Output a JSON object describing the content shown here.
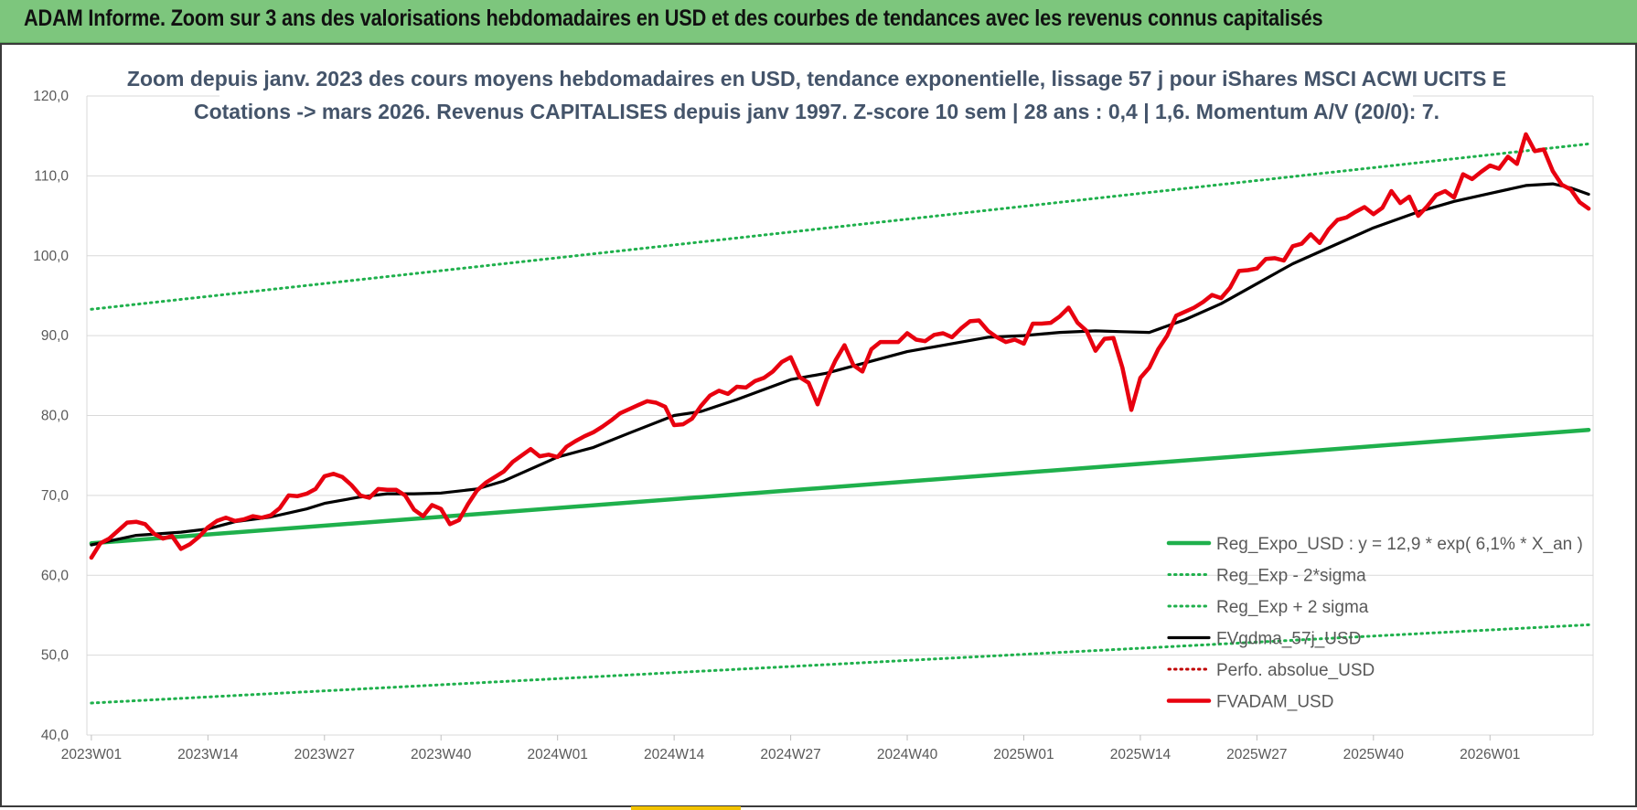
{
  "header": {
    "title": "ADAM Informe. Zoom sur 3 ans des valorisations hebdomadaires en USD et des courbes de tendances avec les revenus connus capitalisés"
  },
  "chart_data": {
    "type": "line",
    "title_line1": "Zoom depuis janv. 2023 des cours moyens hebdomadaires en USD, tendance exponentielle, lissage 57 j pour iShares MSCI ACWI UCITS E",
    "title_line2": "Cotations -> mars 2026. Revenus CAPITALISES depuis janv 1997.  Z-score 10 sem | 28 ans : 0,4 | 1,6.  Momentum A/V (20/0): 7.",
    "ylim": [
      40,
      120
    ],
    "yticks": [
      "40,0",
      "50,0",
      "60,0",
      "70,0",
      "80,0",
      "90,0",
      "100,0",
      "110,0",
      "120,0"
    ],
    "x_count": 168,
    "xticks": [
      {
        "i": 0,
        "label": "2023W01"
      },
      {
        "i": 13,
        "label": "2023W14"
      },
      {
        "i": 26,
        "label": "2023W27"
      },
      {
        "i": 39,
        "label": "2023W40"
      },
      {
        "i": 52,
        "label": "2024W01"
      },
      {
        "i": 65,
        "label": "2024W14"
      },
      {
        "i": 78,
        "label": "2024W27"
      },
      {
        "i": 91,
        "label": "2024W40"
      },
      {
        "i": 104,
        "label": "2025W01"
      },
      {
        "i": 117,
        "label": "2025W14"
      },
      {
        "i": 130,
        "label": "2025W27"
      },
      {
        "i": 143,
        "label": "2025W40"
      },
      {
        "i": 156,
        "label": "2026W01"
      }
    ],
    "grid": true,
    "legend_position": "bottom-right",
    "series": [
      {
        "name": "Reg_Expo_USD : y = 12,9 * exp( 6,1% *  X_an )",
        "color": "#1fb04c",
        "style": "solid-thick",
        "points": [
          [
            0,
            64.0
          ],
          [
            167,
            78.2
          ]
        ]
      },
      {
        "name": "Reg_Exp - 2*sigma",
        "color": "#1fb04c",
        "style": "dotted",
        "points": [
          [
            0,
            44.0
          ],
          [
            167,
            53.8
          ]
        ]
      },
      {
        "name": "Reg_Exp + 2 sigma",
        "color": "#1fb04c",
        "style": "dotted",
        "points": [
          [
            0,
            93.3
          ],
          [
            167,
            114.0
          ]
        ]
      },
      {
        "name": "FVgdma_57j_USD",
        "color": "#000000",
        "style": "solid",
        "points": [
          [
            0,
            63.8
          ],
          [
            5,
            65.0
          ],
          [
            10,
            65.4
          ],
          [
            13,
            65.8
          ],
          [
            16,
            66.7
          ],
          [
            20,
            67.3
          ],
          [
            24,
            68.3
          ],
          [
            26,
            69.0
          ],
          [
            30,
            69.8
          ],
          [
            33,
            70.2
          ],
          [
            36,
            70.2
          ],
          [
            39,
            70.3
          ],
          [
            43,
            70.8
          ],
          [
            46,
            71.8
          ],
          [
            50,
            73.8
          ],
          [
            52,
            74.8
          ],
          [
            56,
            76.0
          ],
          [
            60,
            77.8
          ],
          [
            65,
            80.0
          ],
          [
            68,
            80.5
          ],
          [
            72,
            82.0
          ],
          [
            78,
            84.5
          ],
          [
            82,
            85.3
          ],
          [
            86,
            86.5
          ],
          [
            91,
            88.0
          ],
          [
            96,
            89.0
          ],
          [
            100,
            89.8
          ],
          [
            104,
            90.0
          ],
          [
            108,
            90.4
          ],
          [
            112,
            90.6
          ],
          [
            115,
            90.5
          ],
          [
            118,
            90.4
          ],
          [
            122,
            92.0
          ],
          [
            126,
            94.0
          ],
          [
            130,
            96.5
          ],
          [
            134,
            99.0
          ],
          [
            138,
            101.0
          ],
          [
            143,
            103.5
          ],
          [
            148,
            105.5
          ],
          [
            152,
            106.8
          ],
          [
            156,
            107.8
          ],
          [
            160,
            108.8
          ],
          [
            163,
            109.0
          ],
          [
            165,
            108.5
          ],
          [
            167,
            107.7
          ]
        ]
      },
      {
        "name": "Perfo. absolue_USD",
        "color": "#c00000",
        "style": "dotted",
        "points": []
      },
      {
        "name": "FVADAM_USD",
        "color": "#e8000f",
        "style": "solid-thick",
        "points": [
          [
            0,
            62.2
          ],
          [
            1,
            64.0
          ],
          [
            2,
            64.6
          ],
          [
            3,
            65.6
          ],
          [
            4,
            66.6
          ],
          [
            5,
            66.7
          ],
          [
            6,
            66.4
          ],
          [
            7,
            65.2
          ],
          [
            8,
            64.6
          ],
          [
            9,
            64.9
          ],
          [
            10,
            63.3
          ],
          [
            11,
            63.9
          ],
          [
            12,
            64.8
          ],
          [
            13,
            66.0
          ],
          [
            14,
            66.8
          ],
          [
            15,
            67.2
          ],
          [
            16,
            66.8
          ],
          [
            17,
            67.0
          ],
          [
            18,
            67.4
          ],
          [
            19,
            67.2
          ],
          [
            20,
            67.5
          ],
          [
            21,
            68.4
          ],
          [
            22,
            70.0
          ],
          [
            23,
            69.9
          ],
          [
            24,
            70.2
          ],
          [
            25,
            70.8
          ],
          [
            26,
            72.4
          ],
          [
            27,
            72.7
          ],
          [
            28,
            72.3
          ],
          [
            29,
            71.3
          ],
          [
            30,
            70.0
          ],
          [
            31,
            69.7
          ],
          [
            32,
            70.8
          ],
          [
            33,
            70.7
          ],
          [
            34,
            70.7
          ],
          [
            35,
            70.0
          ],
          [
            36,
            68.2
          ],
          [
            37,
            67.4
          ],
          [
            38,
            68.8
          ],
          [
            39,
            68.3
          ],
          [
            40,
            66.4
          ],
          [
            41,
            66.9
          ],
          [
            42,
            68.9
          ],
          [
            43,
            70.6
          ],
          [
            44,
            71.6
          ],
          [
            45,
            72.3
          ],
          [
            46,
            73.0
          ],
          [
            47,
            74.2
          ],
          [
            48,
            75.0
          ],
          [
            49,
            75.8
          ],
          [
            50,
            74.9
          ],
          [
            51,
            75.1
          ],
          [
            52,
            74.8
          ],
          [
            53,
            76.1
          ],
          [
            54,
            76.8
          ],
          [
            55,
            77.4
          ],
          [
            56,
            77.9
          ],
          [
            57,
            78.6
          ],
          [
            58,
            79.4
          ],
          [
            59,
            80.3
          ],
          [
            60,
            80.8
          ],
          [
            61,
            81.3
          ],
          [
            62,
            81.8
          ],
          [
            63,
            81.6
          ],
          [
            64,
            81.1
          ],
          [
            65,
            78.8
          ],
          [
            66,
            78.9
          ],
          [
            67,
            79.6
          ],
          [
            68,
            81.2
          ],
          [
            69,
            82.5
          ],
          [
            70,
            83.1
          ],
          [
            71,
            82.7
          ],
          [
            72,
            83.6
          ],
          [
            73,
            83.5
          ],
          [
            74,
            84.3
          ],
          [
            75,
            84.7
          ],
          [
            76,
            85.5
          ],
          [
            77,
            86.7
          ],
          [
            78,
            87.3
          ],
          [
            79,
            84.8
          ],
          [
            80,
            84.1
          ],
          [
            81,
            81.4
          ],
          [
            82,
            84.5
          ],
          [
            83,
            86.9
          ],
          [
            84,
            88.8
          ],
          [
            85,
            86.3
          ],
          [
            86,
            85.5
          ],
          [
            87,
            88.3
          ],
          [
            88,
            89.2
          ],
          [
            89,
            89.2
          ],
          [
            90,
            89.2
          ],
          [
            91,
            90.3
          ],
          [
            92,
            89.5
          ],
          [
            93,
            89.3
          ],
          [
            94,
            90.1
          ],
          [
            95,
            90.3
          ],
          [
            96,
            89.8
          ],
          [
            97,
            90.9
          ],
          [
            98,
            91.8
          ],
          [
            99,
            91.9
          ],
          [
            100,
            90.6
          ],
          [
            101,
            89.8
          ],
          [
            102,
            89.2
          ],
          [
            103,
            89.5
          ],
          [
            104,
            89.0
          ],
          [
            105,
            91.5
          ],
          [
            106,
            91.5
          ],
          [
            107,
            91.6
          ],
          [
            108,
            92.4
          ],
          [
            109,
            93.5
          ],
          [
            110,
            91.6
          ],
          [
            111,
            90.6
          ],
          [
            112,
            88.1
          ],
          [
            113,
            89.6
          ],
          [
            114,
            89.7
          ],
          [
            115,
            86.0
          ],
          [
            116,
            80.7
          ],
          [
            117,
            84.7
          ],
          [
            118,
            86.0
          ],
          [
            119,
            88.3
          ],
          [
            120,
            90.0
          ],
          [
            121,
            92.5
          ],
          [
            122,
            93.0
          ],
          [
            123,
            93.5
          ],
          [
            124,
            94.2
          ],
          [
            125,
            95.1
          ],
          [
            126,
            94.7
          ],
          [
            127,
            96.0
          ],
          [
            128,
            98.1
          ],
          [
            129,
            98.2
          ],
          [
            130,
            98.4
          ],
          [
            131,
            99.6
          ],
          [
            132,
            99.7
          ],
          [
            133,
            99.4
          ],
          [
            134,
            101.2
          ],
          [
            135,
            101.5
          ],
          [
            136,
            102.7
          ],
          [
            137,
            101.6
          ],
          [
            138,
            103.3
          ],
          [
            139,
            104.5
          ],
          [
            140,
            104.8
          ],
          [
            141,
            105.5
          ],
          [
            142,
            106.1
          ],
          [
            143,
            105.2
          ],
          [
            144,
            106.0
          ],
          [
            145,
            108.1
          ],
          [
            146,
            106.6
          ],
          [
            147,
            107.4
          ],
          [
            148,
            105.0
          ],
          [
            149,
            106.2
          ],
          [
            150,
            107.6
          ],
          [
            151,
            108.1
          ],
          [
            152,
            107.3
          ],
          [
            153,
            110.2
          ],
          [
            154,
            109.6
          ],
          [
            155,
            110.5
          ],
          [
            156,
            111.3
          ],
          [
            157,
            110.9
          ],
          [
            158,
            112.4
          ],
          [
            159,
            111.5
          ],
          [
            160,
            115.2
          ],
          [
            161,
            113.1
          ],
          [
            162,
            113.3
          ],
          [
            163,
            110.6
          ],
          [
            164,
            108.9
          ],
          [
            165,
            108.3
          ],
          [
            166,
            106.7
          ],
          [
            167,
            105.9
          ]
        ]
      }
    ]
  }
}
